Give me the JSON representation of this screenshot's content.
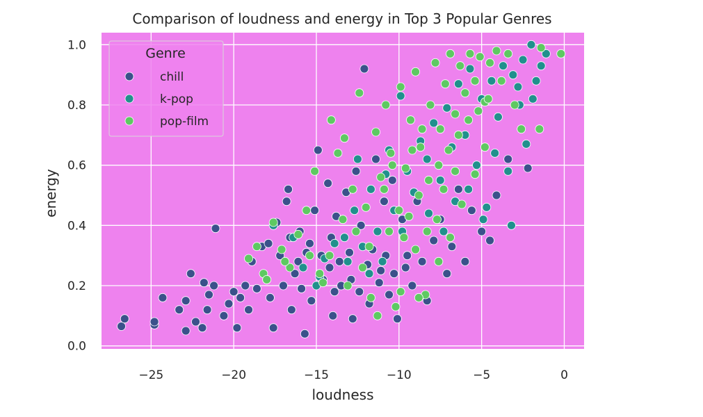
{
  "chart_data": {
    "type": "scatter",
    "title": "Comparison of loudness and energy in Top 3 Popular Genres",
    "xlabel": "loudness",
    "ylabel": "energy",
    "xlim": [
      -28,
      1.2
    ],
    "ylim": [
      -0.01,
      1.04
    ],
    "x_ticks": [
      -25,
      -20,
      -15,
      -10,
      -5,
      0
    ],
    "x_tick_labels": [
      "−25",
      "−20",
      "−15",
      "−10",
      "−5",
      "0"
    ],
    "y_ticks": [
      0.0,
      0.2,
      0.4,
      0.6,
      0.8,
      1.0
    ],
    "y_tick_labels": [
      "0.0",
      "0.2",
      "0.4",
      "0.6",
      "0.8",
      "1.0"
    ],
    "grid": true,
    "background_color": "#ee82ee",
    "legend": {
      "title": "Genre",
      "placement": "top-left"
    },
    "series": [
      {
        "name": "chill",
        "color": "#3b518b",
        "points": [
          [
            -26.8,
            0.065
          ],
          [
            -26.6,
            0.09
          ],
          [
            -24.8,
            0.07
          ],
          [
            -24.8,
            0.08
          ],
          [
            -24.3,
            0.16
          ],
          [
            -23.3,
            0.12
          ],
          [
            -22.9,
            0.05
          ],
          [
            -22.9,
            0.15
          ],
          [
            -22.6,
            0.24
          ],
          [
            -22.3,
            0.08
          ],
          [
            -21.9,
            0.06
          ],
          [
            -21.8,
            0.21
          ],
          [
            -21.6,
            0.12
          ],
          [
            -21.5,
            0.17
          ],
          [
            -21.2,
            0.2
          ],
          [
            -21.1,
            0.39
          ],
          [
            -20.6,
            0.1
          ],
          [
            -20.3,
            0.14
          ],
          [
            -20.0,
            0.18
          ],
          [
            -19.8,
            0.06
          ],
          [
            -19.6,
            0.16
          ],
          [
            -19.3,
            0.2
          ],
          [
            -19.1,
            0.12
          ],
          [
            -18.9,
            0.28
          ],
          [
            -18.6,
            0.19
          ],
          [
            -18.3,
            0.33
          ],
          [
            -18.0,
            0.22
          ],
          [
            -17.9,
            0.34
          ],
          [
            -17.6,
            0.06
          ],
          [
            -17.4,
            0.41
          ],
          [
            -17.2,
            0.3
          ],
          [
            -16.8,
            0.48
          ],
          [
            -16.7,
            0.52
          ],
          [
            -16.5,
            0.12
          ],
          [
            -16.3,
            0.24
          ],
          [
            -16.0,
            0.38
          ],
          [
            -15.9,
            0.19
          ],
          [
            -15.7,
            0.04
          ],
          [
            -15.6,
            0.31
          ],
          [
            -15.3,
            0.15
          ],
          [
            -15.1,
            0.45
          ],
          [
            -14.9,
            0.65
          ],
          [
            -14.6,
            0.22
          ],
          [
            -14.3,
            0.54
          ],
          [
            -14.1,
            0.36
          ],
          [
            -14.0,
            0.1
          ],
          [
            -13.8,
            0.43
          ],
          [
            -13.5,
            0.2
          ],
          [
            -13.2,
            0.51
          ],
          [
            -13.0,
            0.31
          ],
          [
            -12.8,
            0.09
          ],
          [
            -12.6,
            0.58
          ],
          [
            -12.3,
            0.4
          ],
          [
            -12.1,
            0.92
          ],
          [
            -11.8,
            0.14
          ],
          [
            -11.6,
            0.32
          ],
          [
            -11.4,
            0.62
          ],
          [
            -11.1,
            0.25
          ],
          [
            -10.9,
            0.48
          ],
          [
            -10.6,
            0.17
          ],
          [
            -10.4,
            0.55
          ],
          [
            -10.1,
            0.09
          ],
          [
            -9.8,
            0.42
          ],
          [
            -9.5,
            0.3
          ],
          [
            -9.2,
            0.2
          ],
          [
            -8.9,
            0.48
          ],
          [
            -8.6,
            0.28
          ],
          [
            -8.3,
            0.15
          ],
          [
            -7.9,
            0.35
          ],
          [
            -7.5,
            0.42
          ],
          [
            -7.1,
            0.24
          ],
          [
            -6.8,
            0.33
          ],
          [
            -6.4,
            0.52
          ],
          [
            -6.0,
            0.28
          ],
          [
            -5.6,
            0.45
          ],
          [
            -5.0,
            0.38
          ],
          [
            -4.5,
            0.35
          ],
          [
            -4.1,
            0.5
          ],
          [
            -3.4,
            0.62
          ],
          [
            -2.2,
            0.59
          ],
          [
            -13.6,
            0.28
          ],
          [
            -12.9,
            0.22
          ],
          [
            -12.4,
            0.18
          ],
          [
            -11.9,
            0.27
          ],
          [
            -11.2,
            0.21
          ],
          [
            -10.8,
            0.3
          ],
          [
            -10.3,
            0.24
          ],
          [
            -9.6,
            0.26
          ],
          [
            -16.1,
            0.28
          ],
          [
            -15.4,
            0.34
          ],
          [
            -14.7,
            0.3
          ],
          [
            -14.2,
            0.26
          ],
          [
            -13.9,
            0.18
          ],
          [
            -17.8,
            0.16
          ],
          [
            -17.0,
            0.2
          ],
          [
            -16.6,
            0.36
          ]
        ]
      },
      {
        "name": "k-pop",
        "color": "#21908d",
        "points": [
          [
            -15.0,
            0.2
          ],
          [
            -14.5,
            0.29
          ],
          [
            -13.9,
            0.34
          ],
          [
            -13.3,
            0.36
          ],
          [
            -12.7,
            0.45
          ],
          [
            -12.2,
            0.33
          ],
          [
            -11.7,
            0.52
          ],
          [
            -11.3,
            0.38
          ],
          [
            -10.8,
            0.57
          ],
          [
            -10.3,
            0.45
          ],
          [
            -9.9,
            0.83
          ],
          [
            -9.5,
            0.58
          ],
          [
            -9.1,
            0.51
          ],
          [
            -8.7,
            0.68
          ],
          [
            -8.3,
            0.62
          ],
          [
            -7.9,
            0.74
          ],
          [
            -7.5,
            0.55
          ],
          [
            -7.1,
            0.79
          ],
          [
            -6.8,
            0.66
          ],
          [
            -6.4,
            0.87
          ],
          [
            -6.0,
            0.7
          ],
          [
            -5.7,
            0.92
          ],
          [
            -5.3,
            0.6
          ],
          [
            -5.0,
            0.82
          ],
          [
            -4.7,
            0.46
          ],
          [
            -4.4,
            0.88
          ],
          [
            -4.0,
            0.76
          ],
          [
            -3.7,
            0.93
          ],
          [
            -3.4,
            0.58
          ],
          [
            -3.1,
            0.9
          ],
          [
            -2.8,
            0.86
          ],
          [
            -2.5,
            0.95
          ],
          [
            -2.3,
            0.67
          ],
          [
            -2.0,
            1.0
          ],
          [
            -1.7,
            0.88
          ],
          [
            -1.4,
            0.93
          ],
          [
            -1.1,
            0.97
          ],
          [
            -3.2,
            0.4
          ],
          [
            -4.9,
            0.42
          ],
          [
            -6.6,
            0.48
          ],
          [
            -8.2,
            0.44
          ],
          [
            -9.8,
            0.38
          ],
          [
            -11.0,
            0.28
          ],
          [
            -7.3,
            0.38
          ],
          [
            -5.8,
            0.52
          ],
          [
            -4.2,
            0.64
          ],
          [
            -2.7,
            0.8
          ],
          [
            -1.9,
            0.82
          ],
          [
            -17.6,
            0.4
          ],
          [
            -16.4,
            0.36
          ],
          [
            -15.8,
            0.26
          ],
          [
            -14.8,
            0.23
          ],
          [
            -13.1,
            0.28
          ],
          [
            -11.8,
            0.24
          ],
          [
            -12.5,
            0.62
          ],
          [
            -10.6,
            0.65
          ]
        ]
      },
      {
        "name": "pop-film",
        "color": "#5ec962",
        "points": [
          [
            -19.1,
            0.29
          ],
          [
            -18.6,
            0.33
          ],
          [
            -18.2,
            0.24
          ],
          [
            -17.6,
            0.41
          ],
          [
            -17.1,
            0.32
          ],
          [
            -16.6,
            0.26
          ],
          [
            -16.1,
            0.37
          ],
          [
            -15.6,
            0.45
          ],
          [
            -15.1,
            0.58
          ],
          [
            -14.6,
            0.21
          ],
          [
            -14.1,
            0.75
          ],
          [
            -13.7,
            0.64
          ],
          [
            -13.3,
            0.69
          ],
          [
            -12.8,
            0.52
          ],
          [
            -12.4,
            0.84
          ],
          [
            -12.0,
            0.46
          ],
          [
            -11.7,
            0.16
          ],
          [
            -11.4,
            0.71
          ],
          [
            -11.1,
            0.56
          ],
          [
            -10.8,
            0.8
          ],
          [
            -10.5,
            0.64
          ],
          [
            -10.2,
            0.13
          ],
          [
            -9.9,
            0.86
          ],
          [
            -9.6,
            0.59
          ],
          [
            -9.3,
            0.75
          ],
          [
            -9.0,
            0.91
          ],
          [
            -8.7,
            0.66
          ],
          [
            -8.4,
            0.17
          ],
          [
            -8.1,
            0.8
          ],
          [
            -7.8,
            0.94
          ],
          [
            -7.5,
            0.72
          ],
          [
            -7.2,
            0.87
          ],
          [
            -6.9,
            0.97
          ],
          [
            -6.6,
            0.77
          ],
          [
            -6.3,
            0.93
          ],
          [
            -6.0,
            0.84
          ],
          [
            -5.7,
            0.97
          ],
          [
            -5.4,
            0.88
          ],
          [
            -5.1,
            0.96
          ],
          [
            -4.8,
            0.81
          ],
          [
            -4.5,
            0.94
          ],
          [
            -4.1,
            0.98
          ],
          [
            -3.8,
            0.88
          ],
          [
            -3.4,
            0.97
          ],
          [
            -3.0,
            0.8
          ],
          [
            -2.6,
            0.72
          ],
          [
            -1.5,
            0.72
          ],
          [
            -1.4,
            0.99
          ],
          [
            -0.2,
            0.97
          ],
          [
            -10.9,
            0.52
          ],
          [
            -10.0,
            0.45
          ],
          [
            -9.4,
            0.43
          ],
          [
            -8.8,
            0.5
          ],
          [
            -8.2,
            0.55
          ],
          [
            -7.6,
            0.6
          ],
          [
            -7.0,
            0.65
          ],
          [
            -6.4,
            0.7
          ],
          [
            -5.8,
            0.75
          ],
          [
            -5.2,
            0.78
          ],
          [
            -4.6,
            0.82
          ],
          [
            -9.7,
            0.36
          ],
          [
            -9.0,
            0.32
          ],
          [
            -8.3,
            0.38
          ],
          [
            -7.7,
            0.42
          ],
          [
            -11.8,
            0.33
          ],
          [
            -12.6,
            0.38
          ],
          [
            -13.4,
            0.42
          ],
          [
            -14.2,
            0.3
          ],
          [
            -14.8,
            0.24
          ],
          [
            -15.4,
            0.3
          ],
          [
            -16.9,
            0.28
          ],
          [
            -18.0,
            0.22
          ],
          [
            -8.8,
            0.16
          ],
          [
            -7.6,
            0.28
          ],
          [
            -6.9,
            0.36
          ],
          [
            -6.2,
            0.47
          ],
          [
            -5.4,
            0.57
          ],
          [
            -4.8,
            0.66
          ],
          [
            -11.3,
            0.1
          ],
          [
            -9.9,
            0.18
          ],
          [
            -13.1,
            0.2
          ],
          [
            -12.2,
            0.26
          ],
          [
            -10.6,
            0.38
          ],
          [
            -8.6,
            0.72
          ],
          [
            -9.2,
            0.65
          ],
          [
            -10.4,
            0.6
          ],
          [
            -7.3,
            0.52
          ],
          [
            -6.6,
            0.58
          ]
        ]
      }
    ]
  }
}
